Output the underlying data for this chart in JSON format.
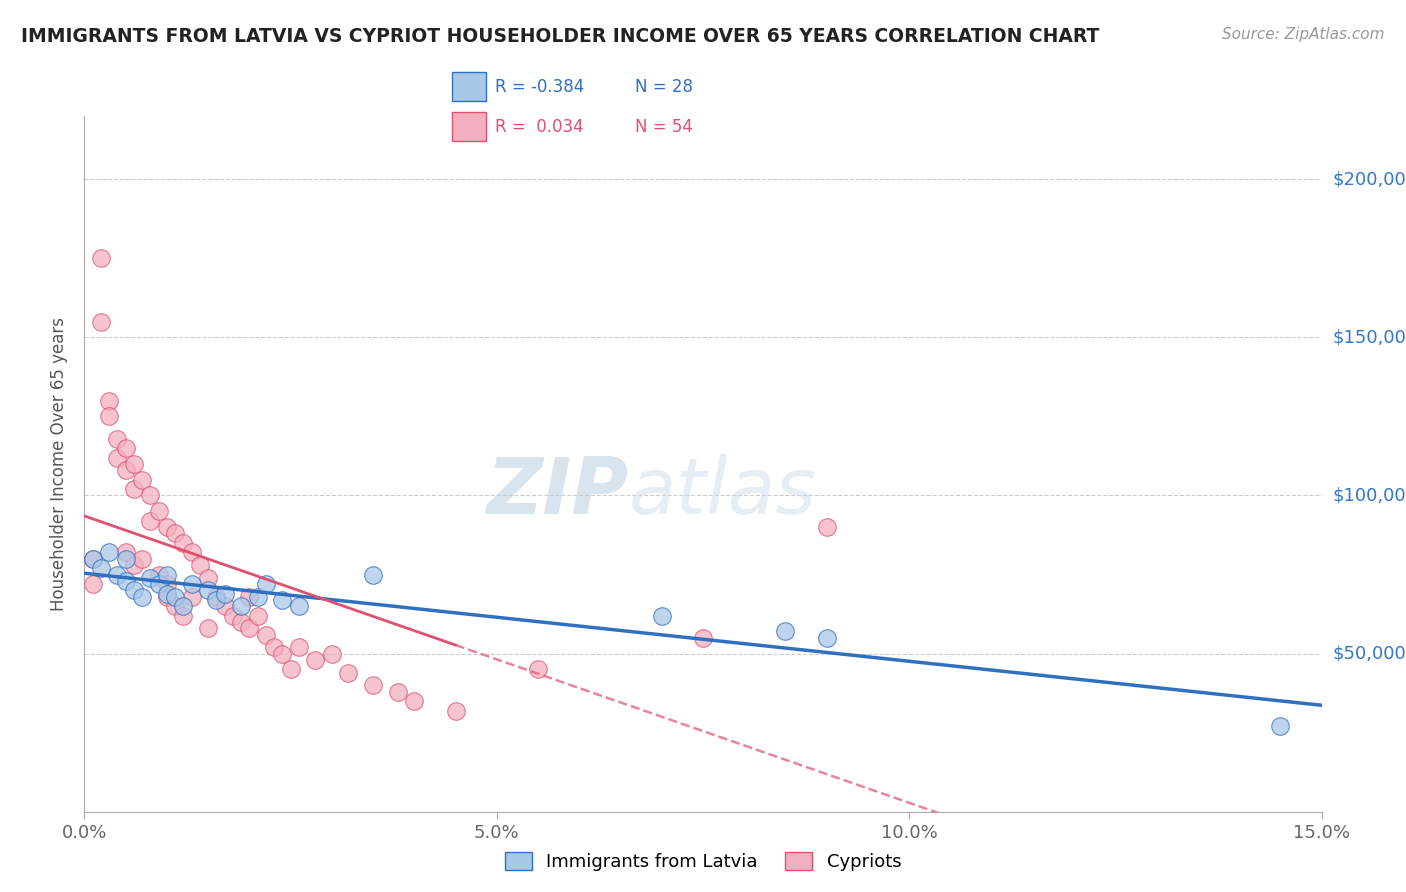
{
  "title": "IMMIGRANTS FROM LATVIA VS CYPRIOT HOUSEHOLDER INCOME OVER 65 YEARS CORRELATION CHART",
  "source": "Source: ZipAtlas.com",
  "ylabel": "Householder Income Over 65 years",
  "xlabel_ticks": [
    "0.0%",
    "5.0%",
    "10.0%",
    "15.0%"
  ],
  "xlabel_vals": [
    0.0,
    5.0,
    10.0,
    15.0
  ],
  "ytick_vals": [
    0,
    50000,
    100000,
    150000,
    200000
  ],
  "ytick_labels": [
    "",
    "$50,000",
    "$100,000",
    "$150,000",
    "$200,000"
  ],
  "xmin": 0.0,
  "xmax": 15.0,
  "ymin": 10000,
  "ymax": 220000,
  "blue_R": -0.384,
  "blue_N": 28,
  "pink_R": 0.034,
  "pink_N": 54,
  "blue_label": "Immigrants from Latvia",
  "pink_label": "Cypriots",
  "blue_color": "#a8c8e8",
  "pink_color": "#f4b0c0",
  "blue_line_color": "#3070c0",
  "pink_line_color": "#e05070",
  "watermark_zip": "ZIP",
  "watermark_atlas": "atlas",
  "blue_scatter_x": [
    0.1,
    0.2,
    0.3,
    0.4,
    0.5,
    0.5,
    0.6,
    0.7,
    0.8,
    0.9,
    1.0,
    1.0,
    1.1,
    1.2,
    1.3,
    1.5,
    1.6,
    1.7,
    1.9,
    2.1,
    2.2,
    2.4,
    2.6,
    3.5,
    7.0,
    8.5,
    9.0,
    14.5
  ],
  "blue_scatter_y": [
    80000,
    77000,
    82000,
    75000,
    73000,
    80000,
    70000,
    68000,
    74000,
    72000,
    69000,
    75000,
    68000,
    65000,
    72000,
    70000,
    67000,
    69000,
    65000,
    68000,
    72000,
    67000,
    65000,
    75000,
    62000,
    57000,
    55000,
    27000
  ],
  "pink_scatter_x": [
    0.1,
    0.1,
    0.2,
    0.2,
    0.3,
    0.3,
    0.4,
    0.4,
    0.5,
    0.5,
    0.5,
    0.6,
    0.6,
    0.6,
    0.7,
    0.7,
    0.8,
    0.8,
    0.9,
    0.9,
    1.0,
    1.0,
    1.0,
    1.1,
    1.1,
    1.2,
    1.2,
    1.3,
    1.3,
    1.4,
    1.5,
    1.5,
    1.6,
    1.7,
    1.8,
    1.9,
    2.0,
    2.0,
    2.1,
    2.2,
    2.3,
    2.4,
    2.5,
    2.6,
    2.8,
    3.0,
    3.2,
    3.5,
    3.8,
    4.0,
    4.5,
    5.5,
    7.5,
    9.0
  ],
  "pink_scatter_y": [
    80000,
    72000,
    175000,
    155000,
    130000,
    125000,
    118000,
    112000,
    115000,
    108000,
    82000,
    110000,
    102000,
    78000,
    105000,
    80000,
    100000,
    92000,
    95000,
    75000,
    90000,
    72000,
    68000,
    88000,
    65000,
    85000,
    62000,
    82000,
    68000,
    78000,
    74000,
    58000,
    68000,
    65000,
    62000,
    60000,
    68000,
    58000,
    62000,
    56000,
    52000,
    50000,
    45000,
    52000,
    48000,
    50000,
    44000,
    40000,
    38000,
    35000,
    32000,
    45000,
    55000,
    90000
  ],
  "pink_solid_end": 4.5
}
